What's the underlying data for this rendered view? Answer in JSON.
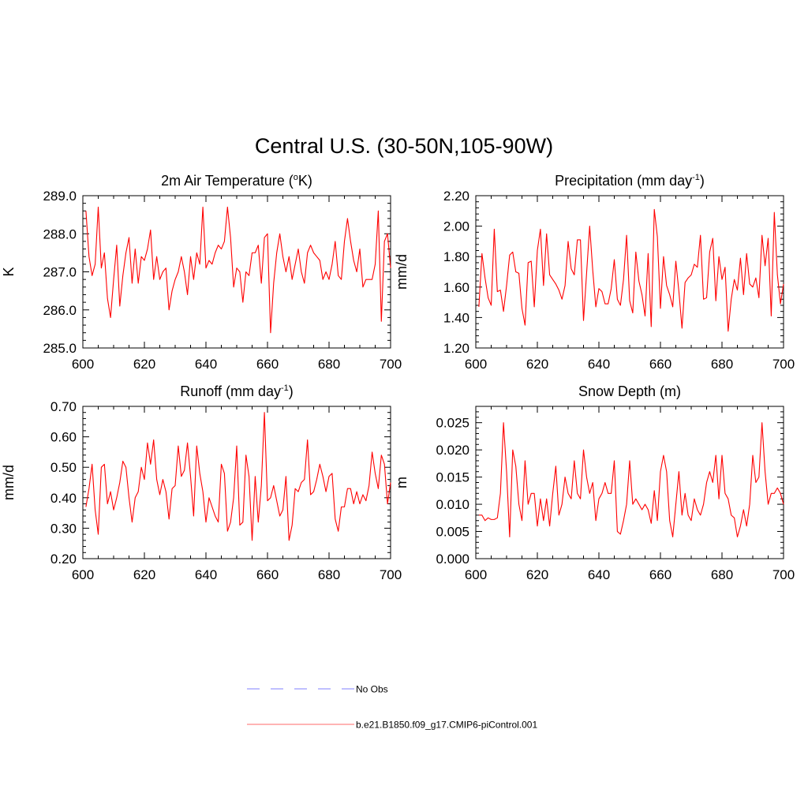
{
  "page_title": "Central U.S. (30-50N,105-90W)",
  "legend": {
    "items": [
      {
        "label": "No Obs",
        "color": "#9999ff",
        "dashed": true
      },
      {
        "label": "b.e21.B1850.f09_g17.CMIP6-piControl.001",
        "color": "#ff8888",
        "dashed": false
      }
    ]
  },
  "chart_data": [
    {
      "type": "line",
      "title": "2m Air Temperature (",
      "title_sup": "o",
      "title_tail": "K)",
      "ylabel": "K",
      "xlim": [
        600,
        700
      ],
      "ylim": [
        285.0,
        289.0
      ],
      "x_ticks": [
        600,
        620,
        640,
        660,
        680,
        700
      ],
      "x_tick_labels": [
        "600",
        "620",
        "640",
        "660",
        "680",
        "700"
      ],
      "y_ticks": [
        285.0,
        286.0,
        287.0,
        288.0,
        289.0
      ],
      "y_tick_labels": [
        "285.0",
        "286.0",
        "287.0",
        "288.0",
        "289.0"
      ],
      "x_start": 601,
      "series": [
        {
          "name": "b.e21.B1850.f09_g17.CMIP6-piControl.001",
          "color": "#ff0000",
          "values": [
            288.6,
            287.4,
            286.9,
            287.2,
            288.7,
            287.1,
            287.5,
            286.3,
            285.8,
            286.8,
            287.7,
            286.1,
            286.9,
            287.5,
            287.9,
            286.7,
            287.6,
            286.7,
            287.4,
            287.3,
            287.6,
            288.1,
            286.8,
            287.4,
            286.8,
            287.0,
            287.1,
            286.0,
            286.5,
            286.8,
            287.0,
            287.4,
            287.0,
            286.4,
            287.4,
            286.8,
            287.5,
            287.2,
            288.7,
            287.1,
            287.3,
            287.2,
            287.5,
            287.7,
            287.6,
            287.8,
            288.7,
            287.9,
            286.6,
            287.1,
            287.0,
            286.2,
            287.0,
            286.9,
            287.5,
            287.5,
            287.7,
            286.7,
            287.9,
            288.0,
            285.4,
            286.7,
            287.5,
            288.0,
            287.4,
            287.0,
            287.4,
            286.8,
            287.2,
            287.6,
            287.0,
            286.7,
            287.5,
            287.7,
            287.5,
            287.4,
            287.3,
            286.8,
            287.0,
            286.8,
            287.2,
            287.8,
            286.9,
            286.8,
            287.8,
            288.4,
            287.8,
            287.3,
            287.0,
            287.6,
            286.6,
            286.8,
            286.8,
            286.8,
            287.2,
            288.6,
            285.7,
            287.8,
            288.0,
            287.1
          ]
        }
      ]
    },
    {
      "type": "line",
      "title": "Precipitation (mm day",
      "title_sup": "-1",
      "title_tail": ")",
      "ylabel": "mm/d",
      "xlim": [
        600,
        700
      ],
      "ylim": [
        1.2,
        2.2
      ],
      "x_ticks": [
        600,
        620,
        640,
        660,
        680,
        700
      ],
      "x_tick_labels": [
        "600",
        "620",
        "640",
        "660",
        "680",
        "700"
      ],
      "y_ticks": [
        1.2,
        1.4,
        1.6,
        1.8,
        2.0,
        2.2
      ],
      "y_tick_labels": [
        "1.20",
        "1.40",
        "1.60",
        "1.80",
        "2.00",
        "2.20"
      ],
      "x_start": 601,
      "series": [
        {
          "name": "b.e21.B1850.f09_g17.CMIP6-piControl.001",
          "color": "#ff0000",
          "values": [
            1.47,
            1.82,
            1.66,
            1.53,
            1.48,
            1.98,
            1.57,
            1.58,
            1.44,
            1.61,
            1.81,
            1.83,
            1.7,
            1.69,
            1.46,
            1.35,
            1.76,
            1.77,
            1.47,
            1.84,
            1.98,
            1.61,
            1.95,
            1.68,
            1.65,
            1.62,
            1.58,
            1.52,
            1.61,
            1.9,
            1.72,
            1.68,
            1.91,
            1.91,
            1.38,
            1.69,
            2.0,
            1.71,
            1.47,
            1.59,
            1.57,
            1.49,
            1.49,
            1.59,
            1.78,
            1.52,
            1.48,
            1.65,
            1.94,
            1.51,
            1.43,
            1.83,
            1.64,
            1.55,
            1.41,
            1.82,
            1.34,
            2.11,
            1.93,
            1.46,
            1.8,
            1.61,
            1.55,
            1.47,
            1.77,
            1.57,
            1.33,
            1.63,
            1.66,
            1.68,
            1.75,
            1.73,
            1.94,
            1.52,
            1.53,
            1.83,
            1.92,
            1.51,
            1.8,
            1.65,
            1.73,
            1.31,
            1.52,
            1.65,
            1.58,
            1.79,
            1.55,
            1.82,
            1.62,
            1.6,
            1.66,
            1.53,
            1.94,
            1.74,
            1.92,
            1.41,
            2.09,
            1.68,
            1.49,
            1.62
          ]
        }
      ]
    },
    {
      "type": "line",
      "title": "Runoff (mm day",
      "title_sup": "-1",
      "title_tail": ")",
      "ylabel": "mm/d",
      "xlim": [
        600,
        700
      ],
      "ylim": [
        0.2,
        0.7
      ],
      "x_ticks": [
        600,
        620,
        640,
        660,
        680,
        700
      ],
      "x_tick_labels": [
        "600",
        "620",
        "640",
        "660",
        "680",
        "700"
      ],
      "y_ticks": [
        0.2,
        0.3,
        0.4,
        0.5,
        0.6,
        0.7
      ],
      "y_tick_labels": [
        "0.20",
        "0.30",
        "0.40",
        "0.50",
        "0.60",
        "0.70"
      ],
      "x_start": 601,
      "series": [
        {
          "name": "b.e21.B1850.f09_g17.CMIP6-piControl.001",
          "color": "#ff0000",
          "values": [
            0.37,
            0.43,
            0.51,
            0.36,
            0.28,
            0.5,
            0.51,
            0.38,
            0.42,
            0.36,
            0.4,
            0.45,
            0.52,
            0.5,
            0.4,
            0.32,
            0.4,
            0.42,
            0.5,
            0.46,
            0.58,
            0.51,
            0.59,
            0.46,
            0.41,
            0.46,
            0.42,
            0.33,
            0.43,
            0.44,
            0.57,
            0.47,
            0.49,
            0.58,
            0.47,
            0.34,
            0.57,
            0.48,
            0.42,
            0.32,
            0.4,
            0.37,
            0.34,
            0.32,
            0.51,
            0.48,
            0.29,
            0.32,
            0.4,
            0.57,
            0.31,
            0.32,
            0.54,
            0.47,
            0.26,
            0.47,
            0.32,
            0.44,
            0.68,
            0.39,
            0.4,
            0.44,
            0.39,
            0.34,
            0.36,
            0.47,
            0.26,
            0.31,
            0.43,
            0.42,
            0.45,
            0.46,
            0.59,
            0.41,
            0.42,
            0.46,
            0.51,
            0.47,
            0.42,
            0.47,
            0.48,
            0.33,
            0.29,
            0.37,
            0.37,
            0.43,
            0.43,
            0.38,
            0.42,
            0.38,
            0.41,
            0.39,
            0.44,
            0.55,
            0.48,
            0.43,
            0.54,
            0.51,
            0.38,
            0.45
          ]
        }
      ]
    },
    {
      "type": "line",
      "title": "Snow Depth (m)",
      "title_sup": "",
      "title_tail": "",
      "ylabel": "m",
      "xlim": [
        600,
        700
      ],
      "ylim": [
        0.0,
        0.028
      ],
      "x_ticks": [
        600,
        620,
        640,
        660,
        680,
        700
      ],
      "x_tick_labels": [
        "600",
        "620",
        "640",
        "660",
        "680",
        "700"
      ],
      "y_ticks": [
        0.0,
        0.005,
        0.01,
        0.015,
        0.02,
        0.025
      ],
      "y_tick_labels": [
        "0.000",
        "0.005",
        "0.010",
        "0.015",
        "0.020",
        "0.025"
      ],
      "x_start": 601,
      "series": [
        {
          "name": "b.e21.B1850.f09_g17.CMIP6-piControl.001",
          "color": "#ff0000",
          "values": [
            0.008,
            0.008,
            0.007,
            0.0075,
            0.0072,
            0.0072,
            0.0075,
            0.012,
            0.025,
            0.016,
            0.004,
            0.02,
            0.017,
            0.01,
            0.007,
            0.018,
            0.01,
            0.012,
            0.012,
            0.006,
            0.011,
            0.007,
            0.011,
            0.006,
            0.012,
            0.017,
            0.008,
            0.01,
            0.015,
            0.012,
            0.011,
            0.018,
            0.012,
            0.011,
            0.02,
            0.015,
            0.012,
            0.014,
            0.007,
            0.011,
            0.012,
            0.014,
            0.012,
            0.012,
            0.018,
            0.005,
            0.0045,
            0.007,
            0.01,
            0.018,
            0.01,
            0.011,
            0.01,
            0.009,
            0.01,
            0.009,
            0.0065,
            0.0125,
            0.007,
            0.016,
            0.019,
            0.016,
            0.007,
            0.004,
            0.01,
            0.016,
            0.008,
            0.012,
            0.008,
            0.007,
            0.011,
            0.009,
            0.008,
            0.01,
            0.014,
            0.016,
            0.014,
            0.019,
            0.011,
            0.019,
            0.012,
            0.011,
            0.008,
            0.0075,
            0.004,
            0.006,
            0.009,
            0.006,
            0.01,
            0.019,
            0.014,
            0.015,
            0.025,
            0.016,
            0.01,
            0.012,
            0.012,
            0.013,
            0.012,
            0.01
          ]
        }
      ]
    }
  ]
}
